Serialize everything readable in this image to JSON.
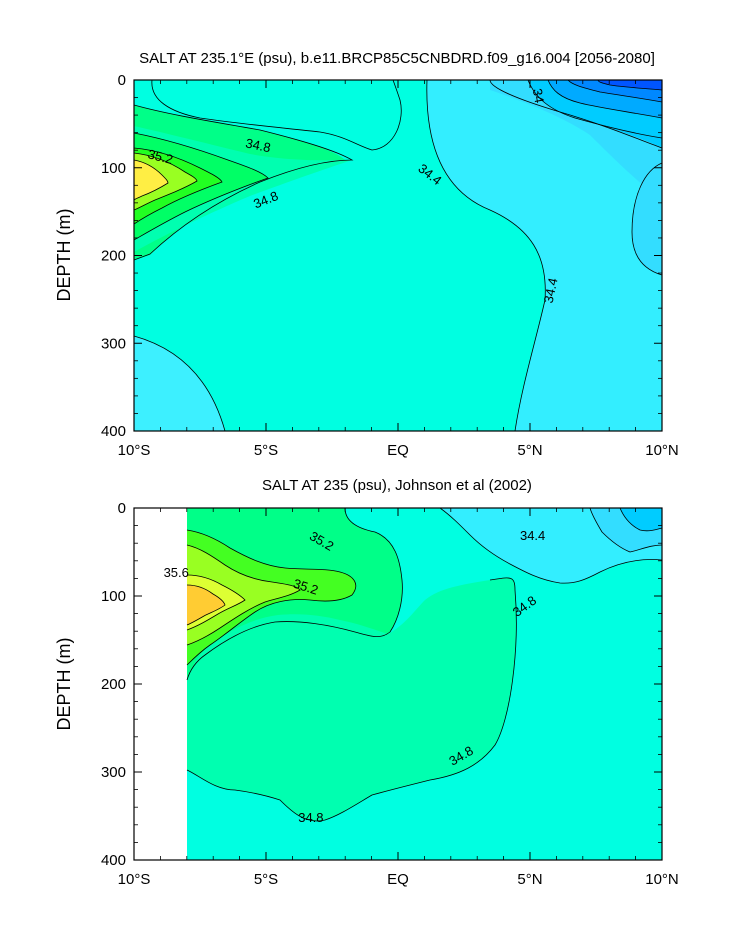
{
  "chart_data": [
    {
      "type": "contour",
      "title": "SALT AT 235.1°E (psu), b.e11.BRCP85C5CNBDRD.f09_g16.004 [2056-2080]",
      "ylabel": "DEPTH (m)",
      "xlim": [
        -10,
        10
      ],
      "ylim": [
        400,
        0
      ],
      "xticks": [
        {
          "value": -10,
          "label": "10°S"
        },
        {
          "value": -5,
          "label": "5°S"
        },
        {
          "value": 0,
          "label": "EQ"
        },
        {
          "value": 5,
          "label": "5°N"
        },
        {
          "value": 10,
          "label": "10°N"
        }
      ],
      "yticks": [
        {
          "value": 0,
          "label": "0"
        },
        {
          "value": 100,
          "label": "100"
        },
        {
          "value": 200,
          "label": "200"
        },
        {
          "value": 300,
          "label": "300"
        },
        {
          "value": 400,
          "label": "400"
        }
      ],
      "contour_labels": [
        {
          "text": "34.8",
          "x": -5.3,
          "y": 75,
          "angle": 12
        },
        {
          "text": "35.2",
          "x": -9.0,
          "y": 88,
          "angle": 14
        },
        {
          "text": "34.8",
          "x": -5.0,
          "y": 137,
          "angle": -22
        },
        {
          "text": "34.4",
          "x": 1.2,
          "y": 108,
          "angle": 38
        },
        {
          "text": "34",
          "x": 5.3,
          "y": 18,
          "angle": 80
        },
        {
          "text": "34.4",
          "x": 5.8,
          "y": 240,
          "angle": -78
        }
      ]
    },
    {
      "type": "contour",
      "title": "SALT AT 235 (psu), Johnson et al (2002)",
      "ylabel": "DEPTH (m)",
      "xlim": [
        -10,
        10
      ],
      "ylim": [
        400,
        0
      ],
      "xticks": [
        {
          "value": -10,
          "label": "10°S"
        },
        {
          "value": -5,
          "label": "5°S"
        },
        {
          "value": 0,
          "label": "EQ"
        },
        {
          "value": 5,
          "label": "5°N"
        },
        {
          "value": 10,
          "label": "10°N"
        }
      ],
      "yticks": [
        {
          "value": 0,
          "label": "0"
        },
        {
          "value": 100,
          "label": "100"
        },
        {
          "value": 200,
          "label": "200"
        },
        {
          "value": 300,
          "label": "300"
        },
        {
          "value": 400,
          "label": "400"
        }
      ],
      "contour_labels": [
        {
          "text": "35.2",
          "x": -2.9,
          "y": 38,
          "angle": 30
        },
        {
          "text": "35.6",
          "x": -8.4,
          "y": 74,
          "angle": 0
        },
        {
          "text": "35.2",
          "x": -3.5,
          "y": 90,
          "angle": 18
        },
        {
          "text": "34.4",
          "x": 5.1,
          "y": 32,
          "angle": 0
        },
        {
          "text": "34.8",
          "x": 4.8,
          "y": 112,
          "angle": -36
        },
        {
          "text": "34.8",
          "x": 2.4,
          "y": 282,
          "angle": -30
        },
        {
          "text": "34.8",
          "x": -3.3,
          "y": 352,
          "angle": 0
        }
      ]
    }
  ]
}
